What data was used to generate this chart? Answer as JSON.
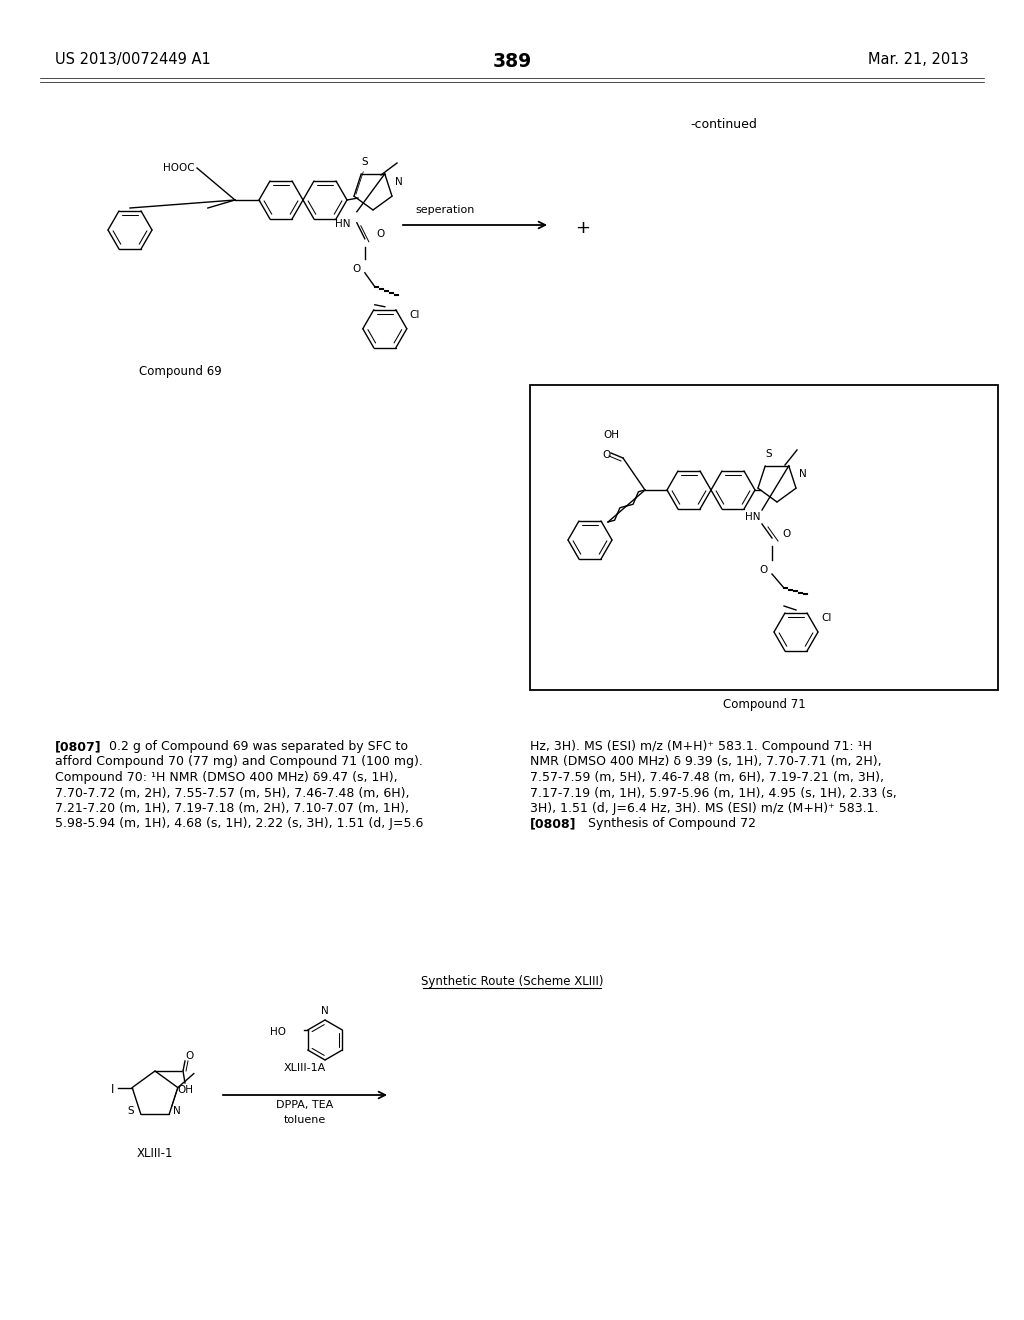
{
  "page_number": "389",
  "patent_number": "US 2013/0072449 A1",
  "patent_date": "Mar. 21, 2013",
  "continued_label": "-continued",
  "separation_label": "seperation",
  "compound_69_label": "Compound 69",
  "compound_71_label": "Compound 71",
  "xliii1_label": "XLIII-1",
  "xliii1a_label": "XLIII-1A",
  "reagents_label": "DPPA, TEA\ntoluene",
  "synthetic_route_label": "Synthetic Route (Scheme XLIII)",
  "background_color": "#ffffff",
  "text_color": "#000000",
  "font_size_body": 9.0,
  "font_size_label": 8.5,
  "font_size_page": 10.5
}
